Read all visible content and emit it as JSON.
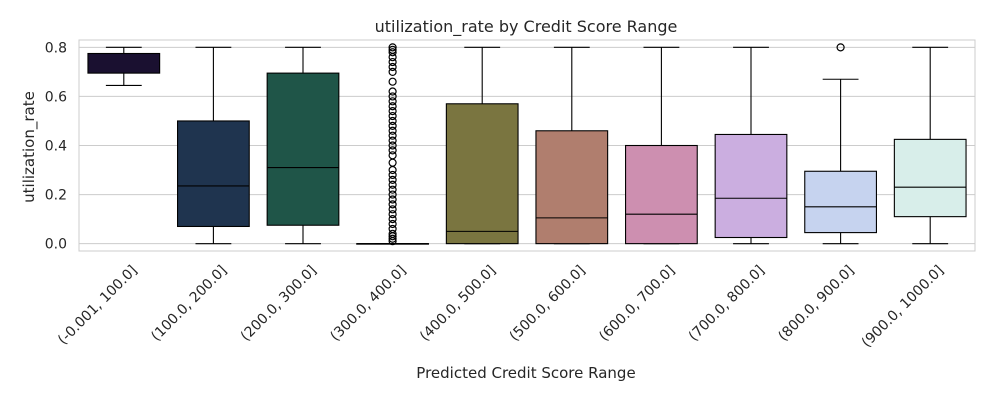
{
  "chart_data": {
    "type": "box",
    "title": "utilization_rate by Credit Score Range",
    "xlabel": "Predicted Credit Score Range",
    "ylabel": "utilization_rate",
    "ylim": [
      -0.03,
      0.83
    ],
    "yticks": [
      0.0,
      0.2,
      0.4,
      0.6,
      0.8
    ],
    "ytick_labels": [
      "0.0",
      "0.2",
      "0.4",
      "0.6",
      "0.8"
    ],
    "grid": true,
    "categories": [
      "(-0.001, 100.0]",
      "(100.0, 200.0]",
      "(200.0, 300.0]",
      "(300.0, 400.0]",
      "(400.0, 500.0]",
      "(500.0, 600.0]",
      "(600.0, 700.0]",
      "(700.0, 800.0]",
      "(800.0, 900.0]",
      "(900.0, 1000.0]"
    ],
    "boxes": [
      {
        "whisker_low": 0.645,
        "q1": 0.695,
        "median": 0.775,
        "q3": 0.775,
        "whisker_high": 0.8,
        "color": "#1a1030",
        "outliers": []
      },
      {
        "whisker_low": 0.0,
        "q1": 0.07,
        "median": 0.235,
        "q3": 0.5,
        "whisker_high": 0.8,
        "color": "#1f344f",
        "outliers": []
      },
      {
        "whisker_low": 0.0,
        "q1": 0.075,
        "median": 0.31,
        "q3": 0.695,
        "whisker_high": 0.8,
        "color": "#1f5548",
        "outliers": []
      },
      {
        "whisker_low": 0.0,
        "q1": 0.0,
        "median": 0.0,
        "q3": 0.0,
        "whisker_high": 0.0,
        "color": "#2a4f3f",
        "outliers": [
          0.8,
          0.79,
          0.78,
          0.76,
          0.74,
          0.72,
          0.7,
          0.66,
          0.62,
          0.6,
          0.58,
          0.56,
          0.54,
          0.52,
          0.5,
          0.48,
          0.46,
          0.44,
          0.42,
          0.4,
          0.38,
          0.36,
          0.33,
          0.3,
          0.28,
          0.26,
          0.24,
          0.22,
          0.2,
          0.18,
          0.16,
          0.14,
          0.12,
          0.1,
          0.08,
          0.06,
          0.04,
          0.03,
          0.02,
          0.01
        ]
      },
      {
        "whisker_low": 0.0,
        "q1": 0.0,
        "median": 0.05,
        "q3": 0.57,
        "whisker_high": 0.8,
        "color": "#7a7540",
        "outliers": []
      },
      {
        "whisker_low": 0.0,
        "q1": 0.0,
        "median": 0.105,
        "q3": 0.46,
        "whisker_high": 0.8,
        "color": "#b07e6e",
        "outliers": []
      },
      {
        "whisker_low": 0.0,
        "q1": 0.0,
        "median": 0.12,
        "q3": 0.4,
        "whisker_high": 0.8,
        "color": "#cd8fb0",
        "outliers": []
      },
      {
        "whisker_low": 0.0,
        "q1": 0.025,
        "median": 0.185,
        "q3": 0.445,
        "whisker_high": 0.8,
        "color": "#cbaee0",
        "outliers": []
      },
      {
        "whisker_low": 0.0,
        "q1": 0.045,
        "median": 0.15,
        "q3": 0.295,
        "whisker_high": 0.67,
        "color": "#c6d3ef",
        "outliers": [
          0.8
        ]
      },
      {
        "whisker_low": 0.0,
        "q1": 0.11,
        "median": 0.23,
        "q3": 0.425,
        "whisker_high": 0.8,
        "color": "#d8eeea",
        "outliers": []
      }
    ]
  }
}
